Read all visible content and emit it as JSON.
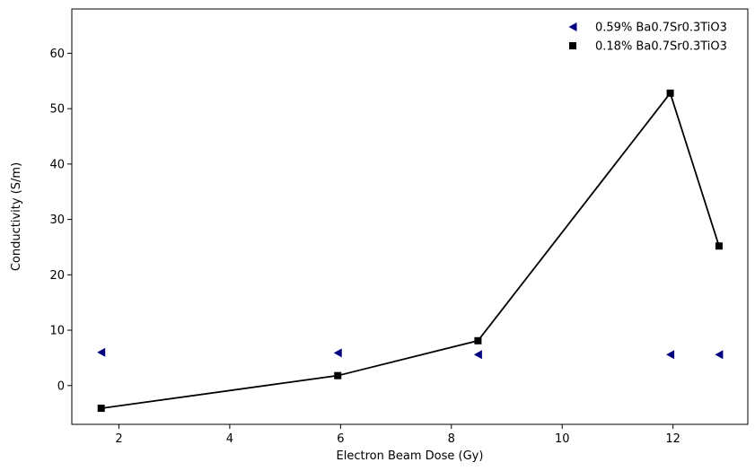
{
  "chart_data": {
    "type": "scatter",
    "title": "",
    "xlabel": "Electron Beam Dose (Gy)",
    "ylabel": "Conductivity (S/m)",
    "xlim": [
      1.15,
      13.35
    ],
    "ylim": [
      -7,
      68
    ],
    "xticks": [
      2,
      4,
      6,
      8,
      10,
      12
    ],
    "yticks": [
      0,
      10,
      20,
      30,
      40,
      50,
      60
    ],
    "grid": false,
    "legend_position": "top-right",
    "series": [
      {
        "name": "0.59% Ba0.7Sr0.3TiO3",
        "marker": "triangle-left",
        "color": "#000080",
        "line": false,
        "x": [
          1.68,
          5.95,
          8.48,
          11.95,
          12.83
        ],
        "y": [
          6.0,
          5.9,
          5.6,
          5.6,
          5.6
        ]
      },
      {
        "name": "0.18% Ba0.7Sr0.3TiO3",
        "marker": "square",
        "color": "#000000",
        "line": true,
        "x": [
          1.68,
          5.95,
          8.48,
          11.95,
          12.83
        ],
        "y": [
          -4.1,
          1.8,
          8.1,
          52.8,
          25.2
        ]
      }
    ]
  }
}
